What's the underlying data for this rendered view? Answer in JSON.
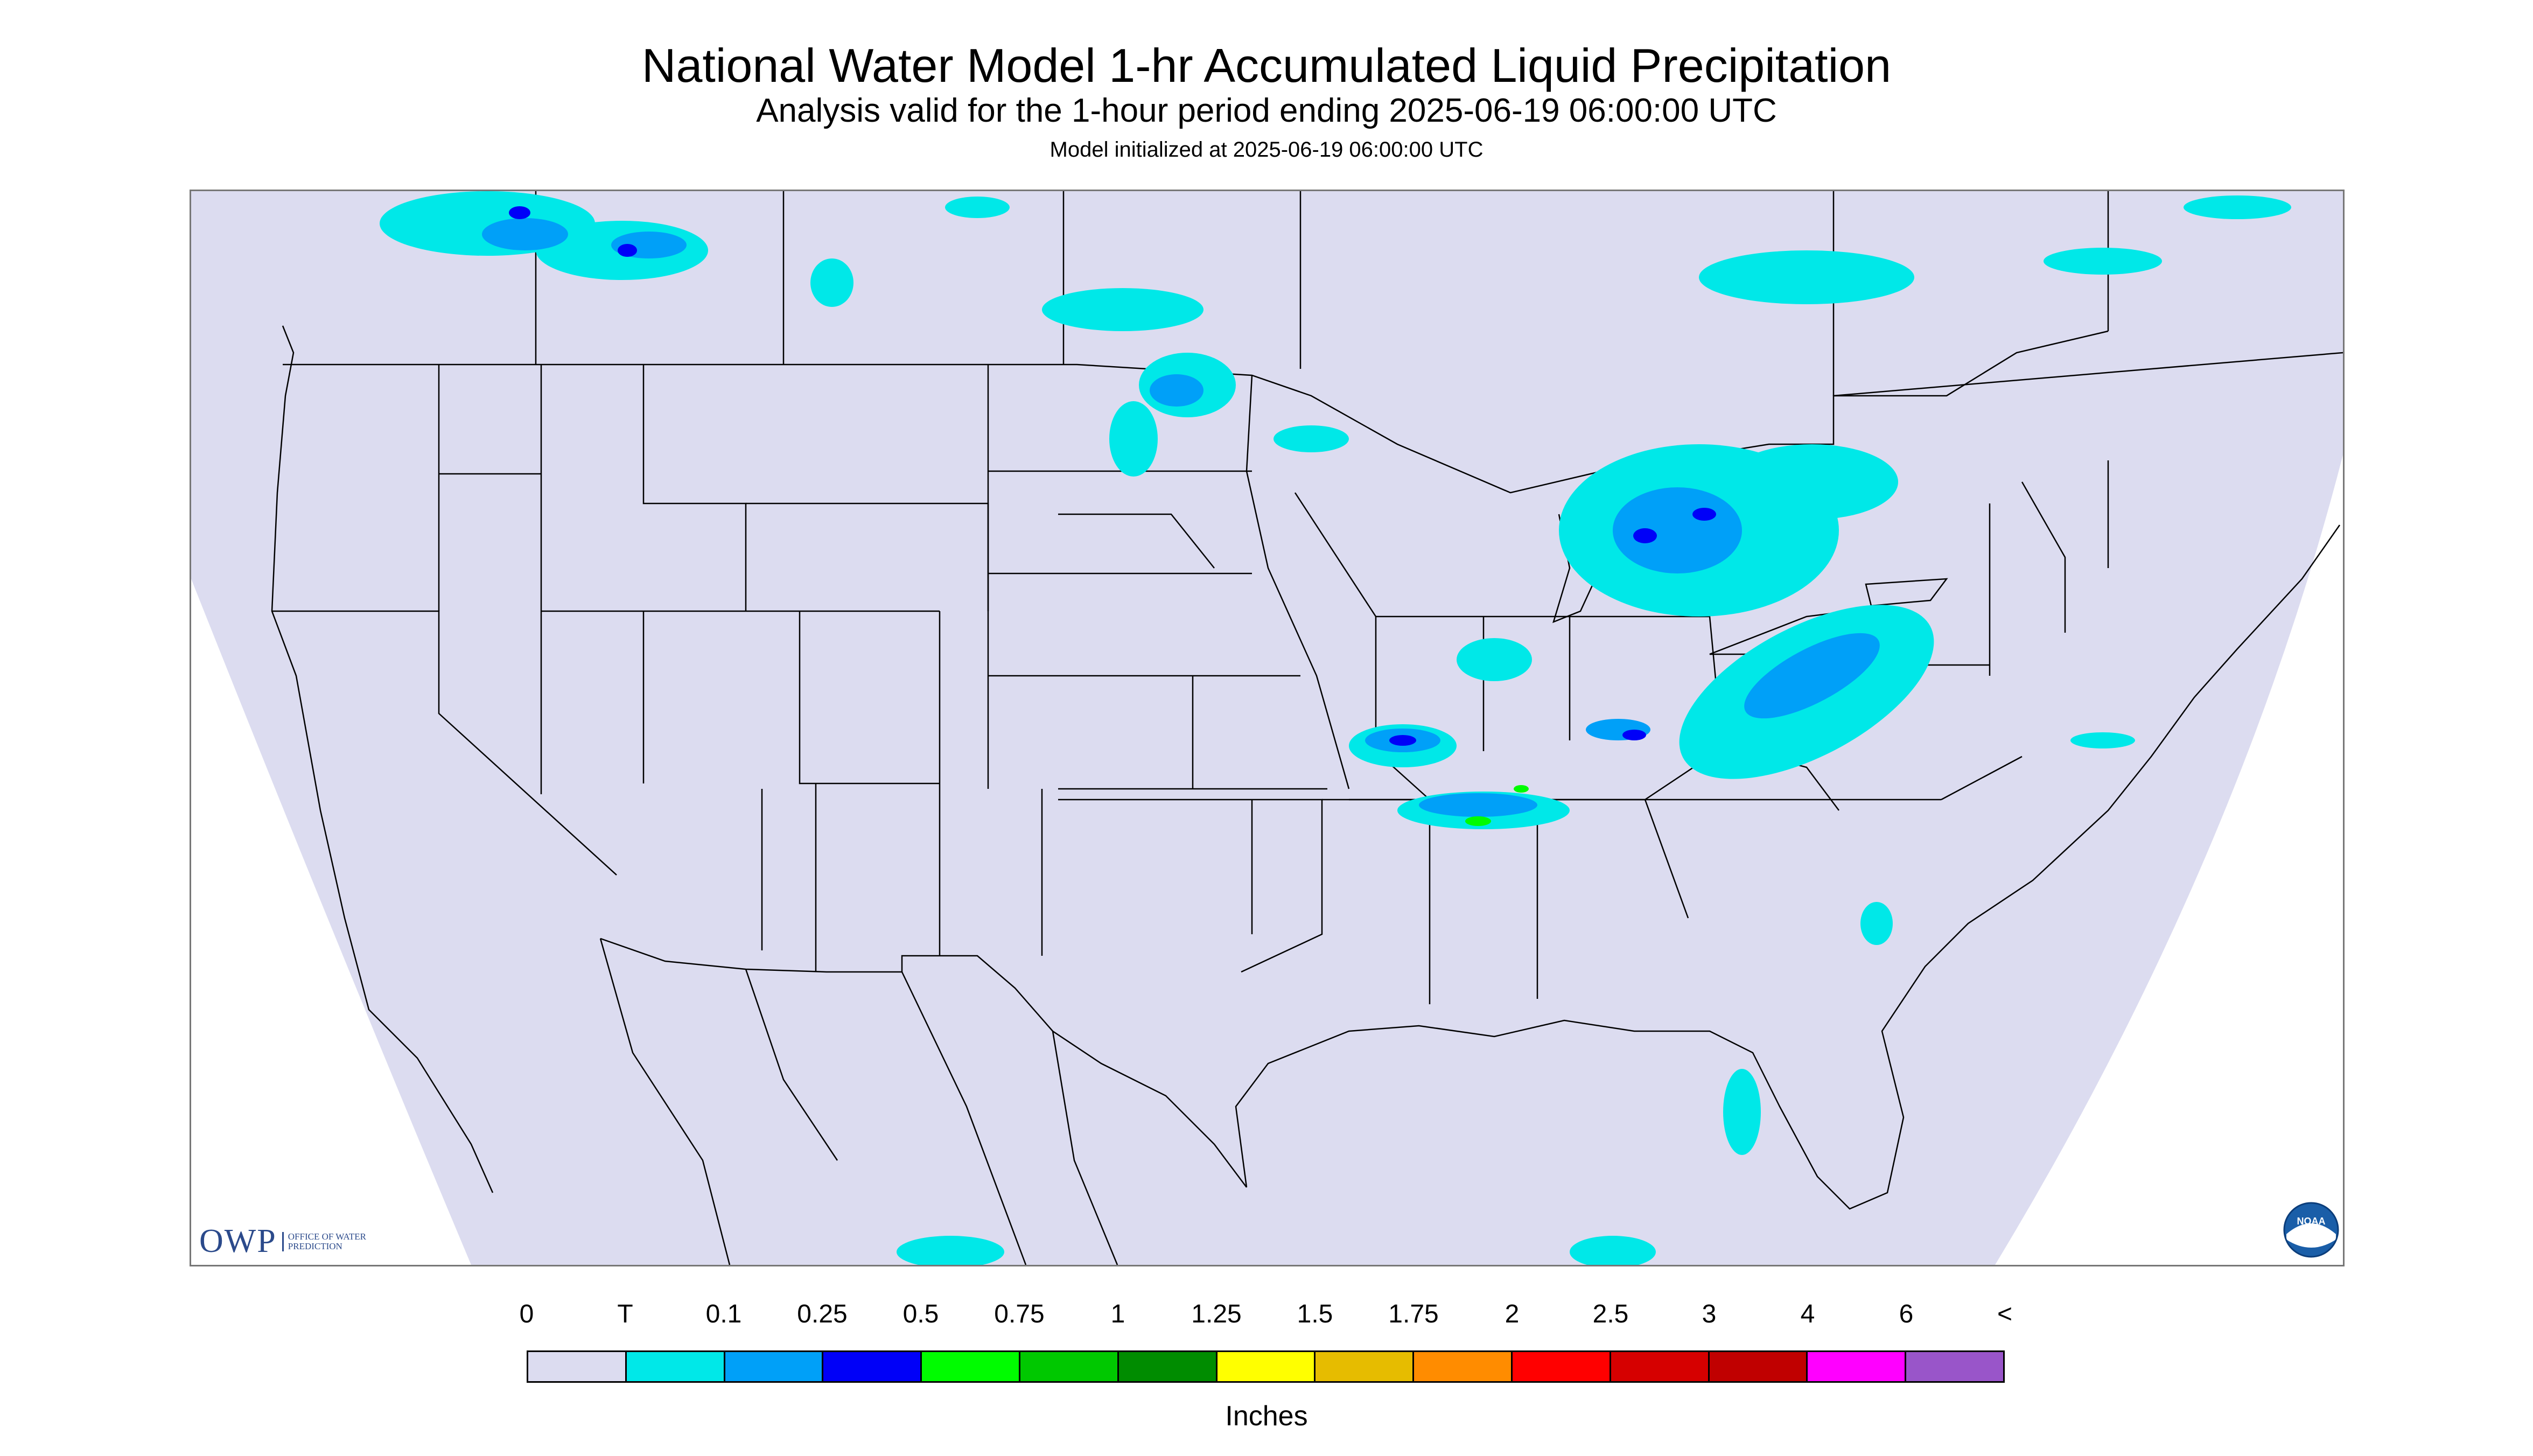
{
  "header": {
    "title": "National Water Model 1-hr Accumulated Liquid Precipitation",
    "subtitle": "Analysis valid for the 1-hour period ending 2025-06-19 06:00:00 UTC",
    "init": "Model initialized at 2025-06-19 06:00:00 UTC"
  },
  "logos": {
    "owp_main": "OWP",
    "owp_sub": "OFFICE OF WATER PREDICTION",
    "noaa": "NOAA"
  },
  "legend": {
    "units": "Inches",
    "labels": [
      "0",
      "T",
      "0.1",
      "0.25",
      "0.5",
      "0.75",
      "1",
      "1.25",
      "1.5",
      "1.75",
      "2",
      "2.5",
      "3",
      "4",
      "6",
      "<"
    ],
    "colors": [
      "#dcdcf0",
      "#00e8e8",
      "#00a0f8",
      "#0000f8",
      "#00fc00",
      "#00c800",
      "#008c00",
      "#ffff00",
      "#e6bc00",
      "#ff8c00",
      "#ff0000",
      "#d60000",
      "#c00000",
      "#ff00ff",
      "#9955c9"
    ]
  },
  "map_colors": {
    "outside_domain": "#ffffff",
    "domain": "#dcdcf0",
    "boundaries": "#000000",
    "trace": "#00e8e8",
    "light": "#00a0f8",
    "moderate": "#0000f8",
    "heavy": "#00fc00"
  }
}
